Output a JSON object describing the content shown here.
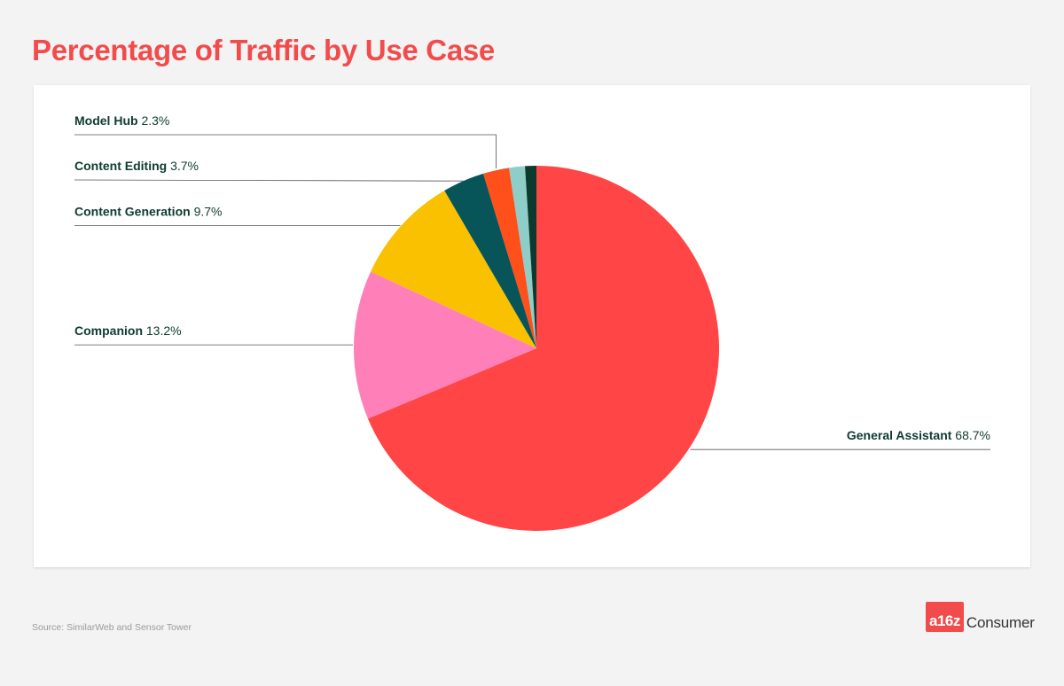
{
  "header": {
    "title": "Percentage of Traffic by Use Case"
  },
  "footer": {
    "source": "Source: SimilarWeb and Sensor Tower",
    "brand_mark": "a16z",
    "brand_text": "Consumer"
  },
  "chart_data": {
    "type": "pie",
    "title": "Percentage of Traffic by Use Case",
    "start_angle_deg": 0,
    "direction": "clockwise",
    "slices": [
      {
        "label": "General Assistant",
        "value": 68.7,
        "value_label": "68.7%",
        "color": "#ff4545",
        "labeled": true
      },
      {
        "label": "Companion",
        "value": 13.2,
        "value_label": "13.2%",
        "color": "#ff80b8",
        "labeled": true
      },
      {
        "label": "Content Generation",
        "value": 9.7,
        "value_label": "9.7%",
        "color": "#f9c100",
        "labeled": true
      },
      {
        "label": "Content Editing",
        "value": 3.7,
        "value_label": "3.7%",
        "color": "#075558",
        "labeled": true
      },
      {
        "label": "Model Hub",
        "value": 2.3,
        "value_label": "2.3%",
        "color": "#ff4f1a",
        "labeled": true
      },
      {
        "label": "",
        "value": 1.4,
        "value_label": "",
        "color": "#8fcdc8",
        "labeled": false
      },
      {
        "label": "",
        "value": 1.0,
        "value_label": "",
        "color": "#0c3a2c",
        "labeled": false
      }
    ]
  }
}
